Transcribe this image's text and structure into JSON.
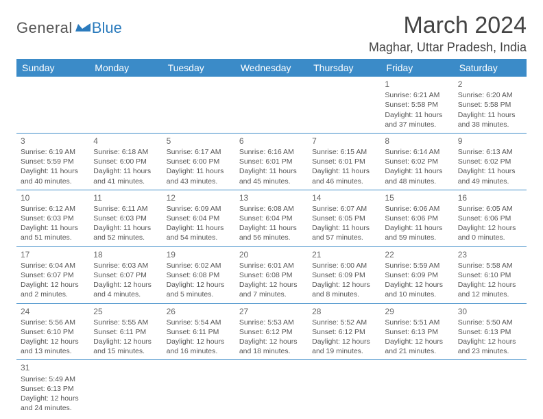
{
  "logo": {
    "text1": "General",
    "text2": "Blue"
  },
  "title": "March 2024",
  "location": "Maghar, Uttar Pradesh, India",
  "colors": {
    "header_bg": "#3b8bc8",
    "header_text": "#ffffff",
    "border": "#3b8bc8",
    "text": "#555555",
    "logo_gray": "#555555",
    "logo_blue": "#2b7bbd"
  },
  "days_header": [
    "Sunday",
    "Monday",
    "Tuesday",
    "Wednesday",
    "Thursday",
    "Friday",
    "Saturday"
  ],
  "weeks": [
    [
      null,
      null,
      null,
      null,
      null,
      {
        "n": "1",
        "sunrise": "6:21 AM",
        "sunset": "5:58 PM",
        "daylight": "11 hours and 37 minutes."
      },
      {
        "n": "2",
        "sunrise": "6:20 AM",
        "sunset": "5:58 PM",
        "daylight": "11 hours and 38 minutes."
      }
    ],
    [
      {
        "n": "3",
        "sunrise": "6:19 AM",
        "sunset": "5:59 PM",
        "daylight": "11 hours and 40 minutes."
      },
      {
        "n": "4",
        "sunrise": "6:18 AM",
        "sunset": "6:00 PM",
        "daylight": "11 hours and 41 minutes."
      },
      {
        "n": "5",
        "sunrise": "6:17 AM",
        "sunset": "6:00 PM",
        "daylight": "11 hours and 43 minutes."
      },
      {
        "n": "6",
        "sunrise": "6:16 AM",
        "sunset": "6:01 PM",
        "daylight": "11 hours and 45 minutes."
      },
      {
        "n": "7",
        "sunrise": "6:15 AM",
        "sunset": "6:01 PM",
        "daylight": "11 hours and 46 minutes."
      },
      {
        "n": "8",
        "sunrise": "6:14 AM",
        "sunset": "6:02 PM",
        "daylight": "11 hours and 48 minutes."
      },
      {
        "n": "9",
        "sunrise": "6:13 AM",
        "sunset": "6:02 PM",
        "daylight": "11 hours and 49 minutes."
      }
    ],
    [
      {
        "n": "10",
        "sunrise": "6:12 AM",
        "sunset": "6:03 PM",
        "daylight": "11 hours and 51 minutes."
      },
      {
        "n": "11",
        "sunrise": "6:11 AM",
        "sunset": "6:03 PM",
        "daylight": "11 hours and 52 minutes."
      },
      {
        "n": "12",
        "sunrise": "6:09 AM",
        "sunset": "6:04 PM",
        "daylight": "11 hours and 54 minutes."
      },
      {
        "n": "13",
        "sunrise": "6:08 AM",
        "sunset": "6:04 PM",
        "daylight": "11 hours and 56 minutes."
      },
      {
        "n": "14",
        "sunrise": "6:07 AM",
        "sunset": "6:05 PM",
        "daylight": "11 hours and 57 minutes."
      },
      {
        "n": "15",
        "sunrise": "6:06 AM",
        "sunset": "6:06 PM",
        "daylight": "11 hours and 59 minutes."
      },
      {
        "n": "16",
        "sunrise": "6:05 AM",
        "sunset": "6:06 PM",
        "daylight": "12 hours and 0 minutes."
      }
    ],
    [
      {
        "n": "17",
        "sunrise": "6:04 AM",
        "sunset": "6:07 PM",
        "daylight": "12 hours and 2 minutes."
      },
      {
        "n": "18",
        "sunrise": "6:03 AM",
        "sunset": "6:07 PM",
        "daylight": "12 hours and 4 minutes."
      },
      {
        "n": "19",
        "sunrise": "6:02 AM",
        "sunset": "6:08 PM",
        "daylight": "12 hours and 5 minutes."
      },
      {
        "n": "20",
        "sunrise": "6:01 AM",
        "sunset": "6:08 PM",
        "daylight": "12 hours and 7 minutes."
      },
      {
        "n": "21",
        "sunrise": "6:00 AM",
        "sunset": "6:09 PM",
        "daylight": "12 hours and 8 minutes."
      },
      {
        "n": "22",
        "sunrise": "5:59 AM",
        "sunset": "6:09 PM",
        "daylight": "12 hours and 10 minutes."
      },
      {
        "n": "23",
        "sunrise": "5:58 AM",
        "sunset": "6:10 PM",
        "daylight": "12 hours and 12 minutes."
      }
    ],
    [
      {
        "n": "24",
        "sunrise": "5:56 AM",
        "sunset": "6:10 PM",
        "daylight": "12 hours and 13 minutes."
      },
      {
        "n": "25",
        "sunrise": "5:55 AM",
        "sunset": "6:11 PM",
        "daylight": "12 hours and 15 minutes."
      },
      {
        "n": "26",
        "sunrise": "5:54 AM",
        "sunset": "6:11 PM",
        "daylight": "12 hours and 16 minutes."
      },
      {
        "n": "27",
        "sunrise": "5:53 AM",
        "sunset": "6:12 PM",
        "daylight": "12 hours and 18 minutes."
      },
      {
        "n": "28",
        "sunrise": "5:52 AM",
        "sunset": "6:12 PM",
        "daylight": "12 hours and 19 minutes."
      },
      {
        "n": "29",
        "sunrise": "5:51 AM",
        "sunset": "6:13 PM",
        "daylight": "12 hours and 21 minutes."
      },
      {
        "n": "30",
        "sunrise": "5:50 AM",
        "sunset": "6:13 PM",
        "daylight": "12 hours and 23 minutes."
      }
    ],
    [
      {
        "n": "31",
        "sunrise": "5:49 AM",
        "sunset": "6:13 PM",
        "daylight": "12 hours and 24 minutes."
      },
      null,
      null,
      null,
      null,
      null,
      null
    ]
  ],
  "labels": {
    "sunrise": "Sunrise: ",
    "sunset": "Sunset: ",
    "daylight": "Daylight: "
  }
}
